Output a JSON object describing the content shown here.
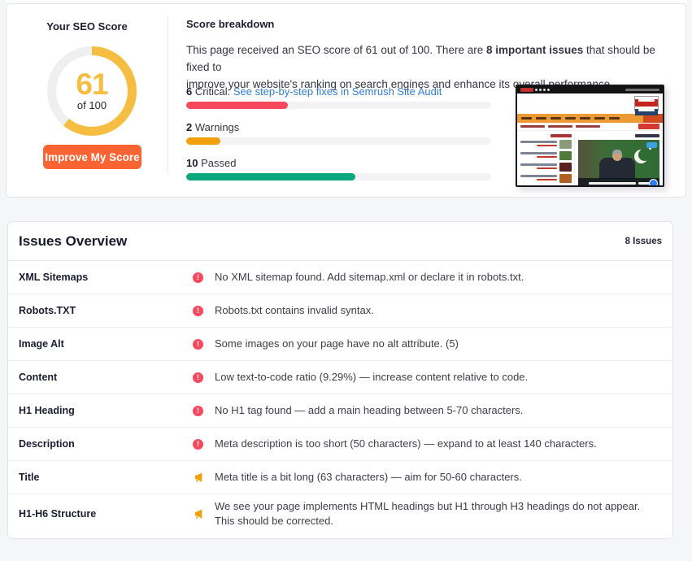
{
  "score_card": {
    "title": "Your SEO Score",
    "score": 61,
    "score_suffix": "of 100",
    "button_label": "Improve My Score",
    "gauge_color": "#F5BE42",
    "gauge_track": "#EFEFF2",
    "button_color": "#FA6432"
  },
  "breakdown": {
    "title": "Score breakdown",
    "text_1": "This page received an SEO score of 61 out of 100. There are ",
    "text_bold": "8 important issues",
    "text_2": " that should be fixed to",
    "text_3": "improve your website's ranking on search engines and enhance its overall performance.",
    "total": 18,
    "link_color": "#2F7CD3",
    "bars": [
      {
        "num": "6",
        "label": "Critical:",
        "link": "See step-by-step fixes in Semrush Site Audit",
        "value": 6,
        "color": "#F8485E"
      },
      {
        "num": "2",
        "label": "Warnings",
        "value": 2,
        "color": "#EFA00B"
      },
      {
        "num": "10",
        "label": "Passed",
        "value": 10,
        "color": "#0BA87E"
      }
    ]
  },
  "issues": {
    "title": "Issues Overview",
    "count_label": "8 Issues",
    "critical_icon_glyph": "!",
    "rows": [
      {
        "label": "XML Sitemaps",
        "severity": "critical",
        "text": "No XML sitemap found. Add sitemap.xml or declare it in robots.txt."
      },
      {
        "label": "Robots.TXT",
        "severity": "critical",
        "text": "Robots.txt contains invalid syntax."
      },
      {
        "label": "Image Alt",
        "severity": "critical",
        "text": "Some images on your page have no alt attribute. (5)"
      },
      {
        "label": "Content",
        "severity": "critical",
        "text": "Low text-to-code ratio (9.29%) — increase content relative to code."
      },
      {
        "label": "H1 Heading",
        "severity": "critical",
        "text": "No H1 tag found — add a main heading between 5-70 characters."
      },
      {
        "label": "Description",
        "severity": "critical",
        "text": "Meta description is too short (50 characters) — expand to at least 140 characters."
      },
      {
        "label": "Title",
        "severity": "warning",
        "text": "Meta title is a bit long (63 characters) — aim for 50-60 characters."
      },
      {
        "label": "H1-H6 Structure",
        "severity": "warning",
        "text": "We see your page implements HTML headings but H1 through H3 headings do not appear. This should be corrected."
      }
    ]
  }
}
